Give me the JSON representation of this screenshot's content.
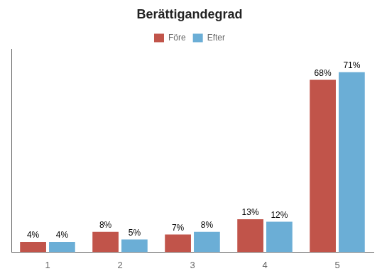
{
  "chart_data": {
    "type": "bar",
    "title": "Berättigandegrad",
    "categories": [
      1,
      2,
      3,
      4,
      5
    ],
    "series": [
      {
        "name": "Före",
        "color": "#C1544A",
        "values": [
          4,
          8,
          7,
          13,
          68
        ],
        "value_labels": [
          "4%",
          "8%",
          "7%",
          "13%",
          "68%"
        ]
      },
      {
        "name": "Efter",
        "color": "#6BAED6",
        "values": [
          4,
          5,
          8,
          12,
          71
        ],
        "value_labels": [
          "4%",
          "5%",
          "8%",
          "12%",
          "71%"
        ]
      }
    ],
    "ylim": [
      0,
      80
    ],
    "grid": false,
    "legend": "top",
    "data_labels": true,
    "tick_labels": "x",
    "background_color": "#FFFFFF"
  }
}
